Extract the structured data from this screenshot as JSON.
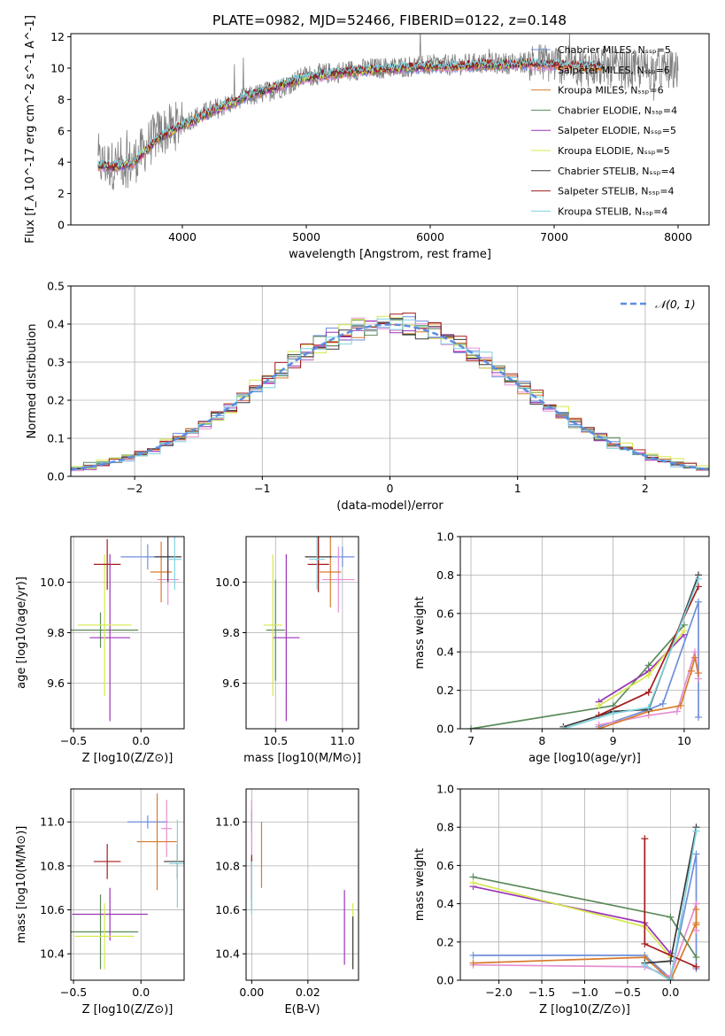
{
  "figure": {
    "title": "PLATE=0982, MJD=52466, FIBERID=0122, z=0.148"
  },
  "chart_data": [
    {
      "id": "spectrum",
      "type": "line",
      "xlabel": "wavelength [Angstrom, rest frame]",
      "ylabel": "Flux [f_λ 10^-17 erg cm^-2 s^-1 A^-1]",
      "xlim": [
        3100,
        8250
      ],
      "ylim": [
        0,
        12.2
      ],
      "xticks": [
        4000,
        5000,
        6000,
        7000,
        8000
      ],
      "yticks": [
        0,
        2,
        4,
        6,
        8,
        10,
        12
      ],
      "grid": false,
      "legend_position": "right",
      "data_continuum": {
        "x": [
          3320,
          3450,
          3600,
          3800,
          4000,
          4200,
          4400,
          4600,
          4800,
          5000,
          5200,
          5400,
          5600,
          5800,
          6000,
          6200,
          6400,
          6600,
          6800,
          7000,
          7200,
          7400,
          7600,
          7800,
          8000
        ],
        "y": [
          3.9,
          3.8,
          4.0,
          5.8,
          6.5,
          7.2,
          7.8,
          8.3,
          8.8,
          9.5,
          9.7,
          9.9,
          10.0,
          10.1,
          10.2,
          10.2,
          10.3,
          10.3,
          10.4,
          10.3,
          10.1,
          10.0,
          9.9,
          9.9,
          9.8
        ]
      },
      "model_continuum": {
        "x": [
          3320,
          3450,
          3600,
          3800,
          4000,
          4200,
          4400,
          4600,
          4800,
          5000,
          5200,
          5400,
          5600,
          5800,
          6000,
          6200,
          6400,
          6600,
          6800,
          7000,
          7200
        ],
        "y": [
          3.8,
          3.7,
          3.9,
          5.5,
          6.3,
          7.1,
          7.8,
          8.4,
          8.9,
          9.4,
          9.6,
          9.8,
          9.9,
          10.0,
          10.1,
          10.1,
          10.2,
          10.2,
          10.3,
          10.2,
          10.1
        ]
      },
      "series": [
        {
          "name": "Chabrier MILES, N_SSP=5",
          "color": "#6f8fdc",
          "xmax": 7100
        },
        {
          "name": "Salpeter MILES, N_SSP=6",
          "color": "#e58fd1",
          "xmax": 7100
        },
        {
          "name": "Kroupa MILES, N_SSP=6",
          "color": "#d87a2b",
          "xmax": 7400
        },
        {
          "name": "Chabrier ELODIE, N_SSP=4",
          "color": "#5a8a5a",
          "xmax": 6800
        },
        {
          "name": "Salpeter ELODIE, N_SSP=5",
          "color": "#9a34b5",
          "xmax": 6800
        },
        {
          "name": "Kroupa ELODIE, N_SSP=5",
          "color": "#d6e84b",
          "xmax": 6800
        },
        {
          "name": "Chabrier STELIB, N_SSP=4",
          "color": "#3b3b3b",
          "xmax": 7400
        },
        {
          "name": "Salpeter STELIB, N_SSP=4",
          "color": "#a51c1c",
          "xmax": 7400
        },
        {
          "name": "Kroupa STELIB, N_SSP=4",
          "color": "#7fd3e0",
          "xmax": 7400
        }
      ],
      "data_color": "#808080"
    },
    {
      "id": "residuals",
      "type": "area",
      "xlabel": "(data-model)/error",
      "ylabel": "Normed distribution",
      "xlim": [
        -2.5,
        2.5
      ],
      "ylim": [
        0,
        0.5
      ],
      "xticks": [
        -2,
        -1,
        0,
        1,
        2
      ],
      "yticks": [
        0.0,
        0.1,
        0.2,
        0.3,
        0.4,
        0.5
      ],
      "grid": true,
      "legend_label": "𝒩(0, 1)",
      "legend_position": "top-right",
      "normal_color": "#5b8ee0",
      "bin_width": 0.1,
      "bin_start": -2.6,
      "histograms": [
        {
          "color": "#6f8fdc",
          "offset": 0.01
        },
        {
          "color": "#e58fd1",
          "offset": -0.012
        },
        {
          "color": "#d87a2b",
          "offset": 0.006
        },
        {
          "color": "#5a8a5a",
          "offset": 0.015
        },
        {
          "color": "#9a34b5",
          "offset": -0.008
        },
        {
          "color": "#d6e84b",
          "offset": 0.02
        },
        {
          "color": "#3b3b3b",
          "offset": -0.004
        },
        {
          "color": "#a51c1c",
          "offset": 0.012
        },
        {
          "color": "#7fd3e0",
          "offset": -0.016
        }
      ]
    },
    {
      "id": "age-vs-Z",
      "type": "scatter",
      "xlabel": "Z [log10(Z/Z⊙)]",
      "ylabel": "age  [log10(age/yr)]",
      "xlim": [
        -0.52,
        0.32
      ],
      "ylim": [
        9.42,
        10.18
      ],
      "xticks": [
        -0.5,
        0.0
      ],
      "yticks": [
        9.6,
        9.8,
        10.0
      ],
      "grid": true,
      "points": [
        {
          "x": 0.05,
          "y": 10.1,
          "xerr": 0.2,
          "yerr": 0.05,
          "color": "#6f8fdc"
        },
        {
          "x": 0.2,
          "y": 10.01,
          "xerr": 0.08,
          "yerr": 0.1,
          "color": "#e58fd1"
        },
        {
          "x": 0.15,
          "y": 10.04,
          "xerr": 0.08,
          "yerr": 0.12,
          "color": "#d87a2b"
        },
        {
          "x": -0.3,
          "y": 9.81,
          "xerr": 0.28,
          "yerr": 0.07,
          "color": "#5a8a5a"
        },
        {
          "x": -0.23,
          "y": 9.78,
          "xerr": 0.15,
          "yerr": 0.33,
          "color": "#9a34b5"
        },
        {
          "x": -0.27,
          "y": 9.83,
          "xerr": 0.2,
          "yerr": 0.28,
          "color": "#d6e84b"
        },
        {
          "x": 0.2,
          "y": 10.1,
          "xerr": 0.1,
          "yerr": 0.1,
          "color": "#3b3b3b"
        },
        {
          "x": -0.25,
          "y": 10.07,
          "xerr": 0.1,
          "yerr": 0.1,
          "color": "#a51c1c"
        },
        {
          "x": 0.25,
          "y": 10.09,
          "xerr": 0.05,
          "yerr": 0.12,
          "color": "#7fd3e0"
        }
      ]
    },
    {
      "id": "age-vs-mass",
      "type": "scatter",
      "xlabel": "mass [log10(M/M⊙)]",
      "xlim": [
        10.28,
        11.12
      ],
      "ylim": [
        9.42,
        10.18
      ],
      "xticks": [
        10.5,
        11.0
      ],
      "yticks": [
        9.6,
        9.8,
        10.0
      ],
      "grid": true,
      "points": [
        {
          "x": 11.0,
          "y": 10.1,
          "xerr": 0.09,
          "yerr": 0.04,
          "color": "#6f8fdc"
        },
        {
          "x": 10.97,
          "y": 10.01,
          "xerr": 0.12,
          "yerr": 0.13,
          "color": "#e58fd1"
        },
        {
          "x": 10.91,
          "y": 10.04,
          "xerr": 0.08,
          "yerr": 0.14,
          "color": "#d87a2b"
        },
        {
          "x": 10.5,
          "y": 9.81,
          "xerr": 0.07,
          "yerr": 0.2,
          "color": "#5a8a5a"
        },
        {
          "x": 10.58,
          "y": 9.78,
          "xerr": 0.1,
          "yerr": 0.33,
          "color": "#9a34b5"
        },
        {
          "x": 10.48,
          "y": 9.83,
          "xerr": 0.07,
          "yerr": 0.28,
          "color": "#d6e84b"
        },
        {
          "x": 10.82,
          "y": 10.1,
          "xerr": 0.1,
          "yerr": 0.1,
          "color": "#3b3b3b"
        },
        {
          "x": 10.82,
          "y": 10.07,
          "xerr": 0.08,
          "yerr": 0.11,
          "color": "#a51c1c"
        },
        {
          "x": 10.81,
          "y": 10.09,
          "xerr": 0.06,
          "yerr": 0.12,
          "color": "#7fd3e0"
        }
      ]
    },
    {
      "id": "mass-weight-vs-age",
      "type": "line",
      "xlabel": "age  [log10(age/yr)]",
      "ylabel": "mass weight",
      "xlim": [
        6.85,
        10.35
      ],
      "ylim": [
        0.0,
        1.0
      ],
      "xticks": [
        7,
        8,
        9,
        10
      ],
      "yticks": [
        0.0,
        0.2,
        0.4,
        0.6,
        0.8,
        1.0
      ],
      "grid": true,
      "series": [
        {
          "color": "#6f8fdc",
          "x": [
            8.8,
            9.5,
            9.7,
            10.2,
            10.2
          ],
          "y": [
            0.01,
            0.1,
            0.13,
            0.66,
            0.06
          ]
        },
        {
          "color": "#e58fd1",
          "x": [
            8.8,
            9.5,
            9.9,
            10.15,
            10.2
          ],
          "y": [
            0.02,
            0.07,
            0.09,
            0.4,
            0.26
          ]
        },
        {
          "color": "#d87a2b",
          "x": [
            8.8,
            9.5,
            9.95,
            10.1,
            10.15,
            10.2
          ],
          "y": [
            0.0,
            0.09,
            0.12,
            0.3,
            0.37,
            0.29
          ]
        },
        {
          "color": "#5a8a5a",
          "x": [
            7.0,
            9.0,
            9.5,
            10.0
          ],
          "y": [
            0.0,
            0.12,
            0.33,
            0.54
          ]
        },
        {
          "color": "#9a34b5",
          "x": [
            8.8,
            9.5,
            10.0
          ],
          "y": [
            0.14,
            0.3,
            0.49
          ]
        },
        {
          "color": "#d6e84b",
          "x": [
            8.8,
            9.5,
            10.0
          ],
          "y": [
            0.12,
            0.28,
            0.51
          ]
        },
        {
          "color": "#3b3b3b",
          "x": [
            8.3,
            9.0,
            9.5,
            10.2
          ],
          "y": [
            0.01,
            0.09,
            0.1,
            0.8
          ]
        },
        {
          "color": "#a51c1c",
          "x": [
            8.8,
            9.5,
            10.2
          ],
          "y": [
            0.07,
            0.19,
            0.74
          ]
        },
        {
          "color": "#7fd3e0",
          "x": [
            8.3,
            9.0,
            9.5,
            10.2
          ],
          "y": [
            0.0,
            0.08,
            0.11,
            0.78
          ]
        }
      ]
    },
    {
      "id": "mass-vs-Z",
      "type": "scatter",
      "xlabel": "Z [log10(Z/Z⊙)]",
      "ylabel": "mass [log10(M/M⊙)]",
      "xlim": [
        -0.52,
        0.32
      ],
      "ylim": [
        10.28,
        11.15
      ],
      "xticks": [
        -0.5,
        0.0
      ],
      "yticks": [
        10.4,
        10.6,
        10.8,
        11.0
      ],
      "grid": true,
      "points": [
        {
          "x": 0.05,
          "y": 11.0,
          "xerr": 0.15,
          "yerr": 0.03,
          "color": "#6f8fdc"
        },
        {
          "x": 0.19,
          "y": 10.97,
          "xerr": 0.04,
          "yerr": 0.13,
          "color": "#e58fd1"
        },
        {
          "x": 0.12,
          "y": 10.91,
          "xerr": 0.15,
          "yerr": 0.22,
          "color": "#d87a2b"
        },
        {
          "x": -0.3,
          "y": 10.5,
          "xerr": 0.28,
          "yerr": 0.17,
          "color": "#5a8a5a"
        },
        {
          "x": -0.23,
          "y": 10.58,
          "xerr": 0.28,
          "yerr": 0.12,
          "color": "#9a34b5"
        },
        {
          "x": -0.27,
          "y": 10.48,
          "xerr": 0.22,
          "yerr": 0.15,
          "color": "#d6e84b"
        },
        {
          "x": 0.27,
          "y": 10.82,
          "xerr": 0.1,
          "yerr": 0.08,
          "color": "#3b3b3b"
        },
        {
          "x": -0.25,
          "y": 10.82,
          "xerr": 0.1,
          "yerr": 0.08,
          "color": "#a51c1c"
        },
        {
          "x": 0.27,
          "y": 10.81,
          "xerr": 0.06,
          "yerr": 0.2,
          "color": "#7fd3e0"
        }
      ]
    },
    {
      "id": "mass-vs-ebv",
      "type": "scatter",
      "xlabel": "E(B-V)",
      "xlim": [
        -0.002,
        0.038
      ],
      "ylim": [
        10.28,
        11.15
      ],
      "xticks": [
        0.0,
        0.02
      ],
      "yticks": [
        10.4,
        10.6,
        10.8,
        11.0
      ],
      "grid": true,
      "points": [
        {
          "x": 0.0,
          "y": 11.0,
          "yerr": 0.05,
          "color": "#6f8fdc"
        },
        {
          "x": 0.0,
          "y": 10.97,
          "yerr": 0.13,
          "color": "#e58fd1"
        },
        {
          "x": 0.0035,
          "y": 10.85,
          "yerr": 0.15,
          "color": "#d87a2b"
        },
        {
          "x": 0.0,
          "y": 10.72,
          "yerr": 0.12,
          "color": "#5a8a5a"
        },
        {
          "x": 0.033,
          "y": 10.52,
          "yerr": 0.17,
          "color": "#9a34b5"
        },
        {
          "x": 0.036,
          "y": 10.48,
          "yerr": 0.15,
          "color": "#d6e84b"
        },
        {
          "x": 0.036,
          "y": 10.45,
          "yerr": 0.12,
          "color": "#3b3b3b"
        },
        {
          "x": 0.0,
          "y": 10.75,
          "yerr": 0.1,
          "color": "#a51c1c"
        },
        {
          "x": 0.0,
          "y": 10.7,
          "yerr": 0.12,
          "color": "#7fd3e0"
        }
      ]
    },
    {
      "id": "mass-weight-vs-Z",
      "type": "line",
      "xlabel": "Z [log10(Z/Z⊙)]",
      "ylabel": "mass weight",
      "xlim": [
        -2.45,
        0.45
      ],
      "ylim": [
        0.0,
        1.0
      ],
      "xticks": [
        -2.0,
        -1.5,
        -1.0,
        -0.5,
        0.0
      ],
      "yticks": [
        0.0,
        0.2,
        0.4,
        0.6,
        0.8,
        1.0
      ],
      "grid": true,
      "series": [
        {
          "color": "#6f8fdc",
          "x": [
            -2.3,
            -0.3,
            0.0,
            0.3,
            0.3
          ],
          "y": [
            0.13,
            0.13,
            0.01,
            0.66,
            0.06
          ]
        },
        {
          "color": "#e58fd1",
          "x": [
            -2.3,
            -0.3,
            0.0,
            0.3,
            0.3
          ],
          "y": [
            0.08,
            0.07,
            0.02,
            0.4,
            0.26
          ]
        },
        {
          "color": "#d87a2b",
          "x": [
            -2.3,
            -0.3,
            0.0,
            0.3,
            0.3,
            0.3
          ],
          "y": [
            0.09,
            0.12,
            0.0,
            0.3,
            0.37,
            0.29
          ]
        },
        {
          "color": "#5a8a5a",
          "x": [
            -2.3,
            0.0,
            0.3
          ],
          "y": [
            0.54,
            0.33,
            0.12
          ]
        },
        {
          "color": "#9a34b5",
          "x": [
            -2.3,
            -0.3,
            0.0
          ],
          "y": [
            0.49,
            0.3,
            0.14
          ]
        },
        {
          "color": "#d6e84b",
          "x": [
            -2.3,
            -0.3,
            0.0
          ],
          "y": [
            0.51,
            0.28,
            0.12
          ]
        },
        {
          "color": "#3b3b3b",
          "x": [
            -0.3,
            0.0,
            0.3
          ],
          "y": [
            0.09,
            0.1,
            0.8
          ]
        },
        {
          "color": "#a51c1c",
          "x": [
            -0.3,
            -0.3,
            0.3
          ],
          "y": [
            0.74,
            0.19,
            0.07
          ]
        },
        {
          "color": "#7fd3e0",
          "x": [
            -0.3,
            0.0,
            0.3
          ],
          "y": [
            0.08,
            0.0,
            0.78
          ]
        }
      ]
    }
  ]
}
